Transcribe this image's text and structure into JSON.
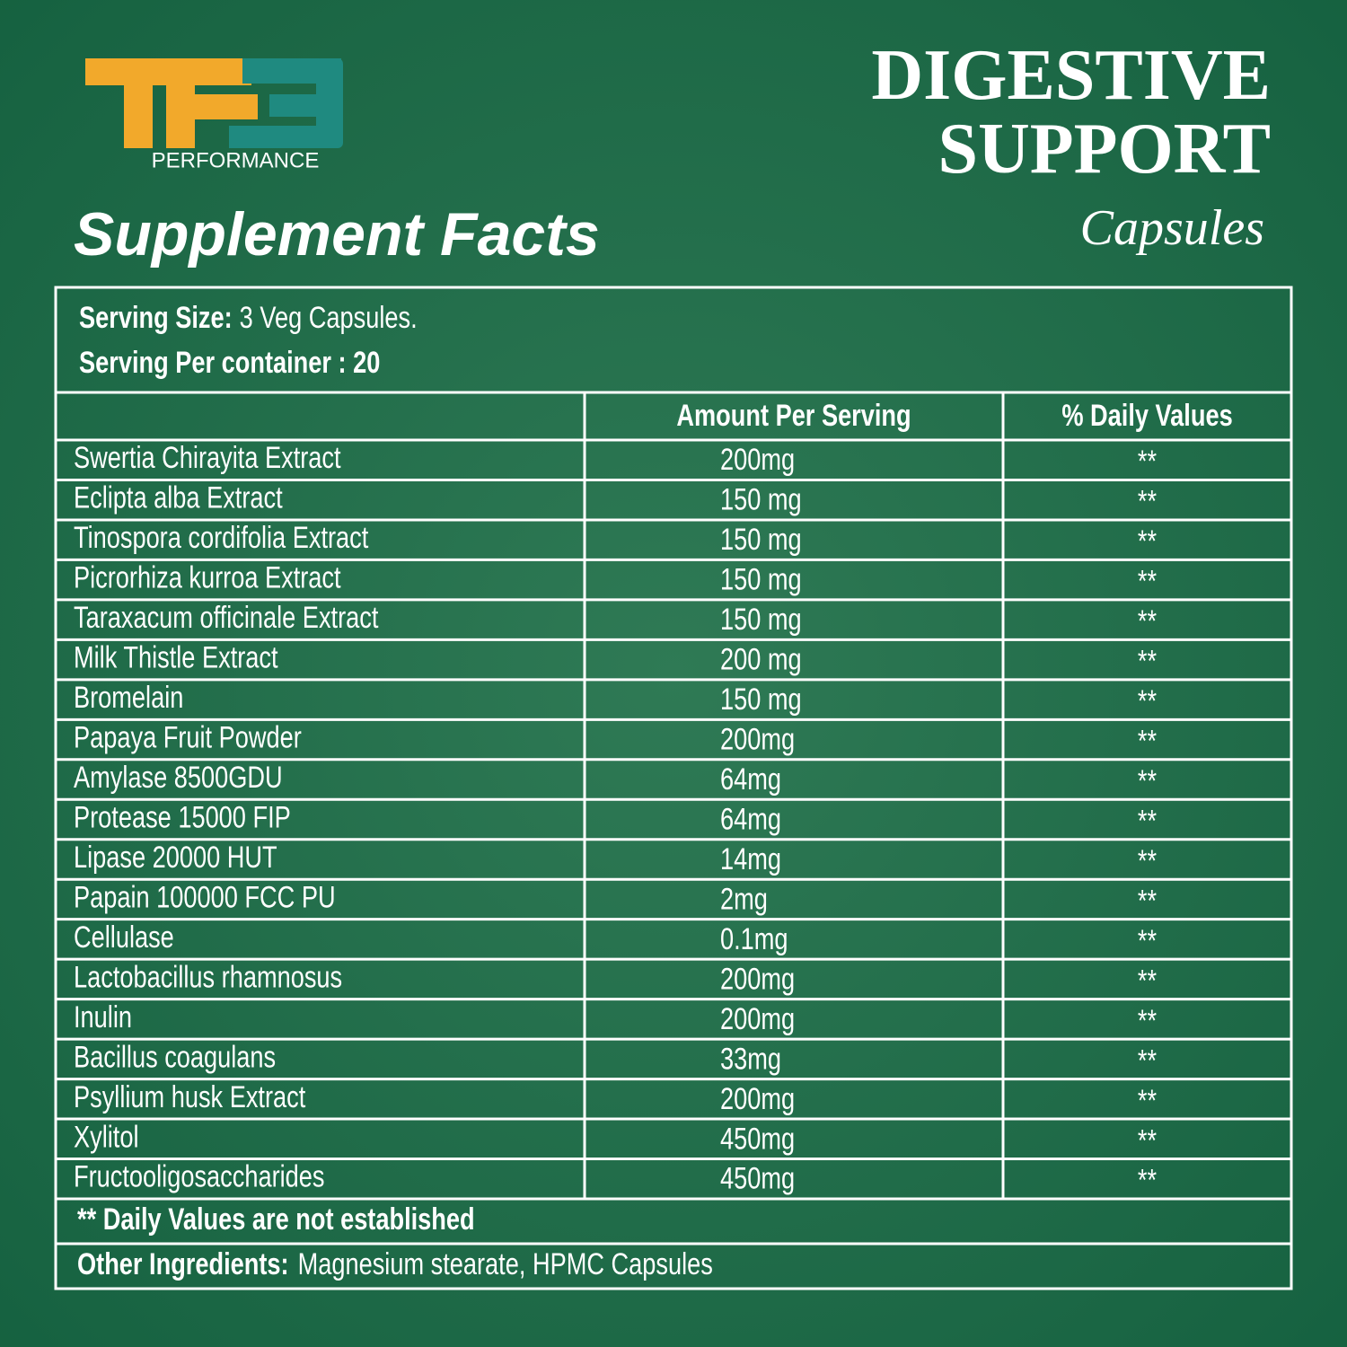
{
  "logo": {
    "text": "PERFORMANCE"
  },
  "product": {
    "line1": "DIGESTIVE",
    "line2": "SUPPORT",
    "line3": "Capsules"
  },
  "heading": "Supplement Facts",
  "serving": {
    "size_label": "Serving Size:",
    "size_value": "3 Veg Capsules.",
    "per_container": "Serving Per container : 20"
  },
  "table": {
    "columns": [
      "Amount Per Serving",
      "% Daily Values"
    ],
    "rows": [
      [
        "Swertia Chirayita Extract",
        "200mg",
        "**"
      ],
      [
        "Eclipta alba Extract",
        "150 mg",
        "**"
      ],
      [
        "Tinospora cordifolia Extract",
        "150 mg",
        "**"
      ],
      [
        "Picrorhiza kurroa Extract",
        "150 mg",
        "**"
      ],
      [
        "Taraxacum officinale Extract",
        "150 mg",
        "**"
      ],
      [
        "Milk Thistle Extract",
        "200 mg",
        "**"
      ],
      [
        "Bromelain",
        "150 mg",
        "**"
      ],
      [
        "Papaya Fruit Powder",
        "200mg",
        "**"
      ],
      [
        "Amylase 8500GDU",
        "64mg",
        "**"
      ],
      [
        "Protease 15000 FIP",
        "64mg",
        "**"
      ],
      [
        "Lipase 20000 HUT",
        "14mg",
        "**"
      ],
      [
        "Papain 100000 FCC PU",
        "2mg",
        "**"
      ],
      [
        "Cellulase",
        "0.1mg",
        "**"
      ],
      [
        "Lactobacillus rhamnosus",
        "200mg",
        "**"
      ],
      [
        "Inulin",
        "200mg",
        "**"
      ],
      [
        "Bacillus coagulans",
        "33mg",
        "**"
      ],
      [
        "Psyllium husk Extract",
        "200mg",
        "**"
      ],
      [
        "Xylitol",
        "450mg",
        "**"
      ],
      [
        "Fructooligosaccharides",
        "450mg",
        "**"
      ]
    ]
  },
  "footnote": "** Daily Values are not established",
  "other": {
    "label": "Other Ingredients:",
    "value": "Magnesium stearate, HPMC Capsules"
  }
}
